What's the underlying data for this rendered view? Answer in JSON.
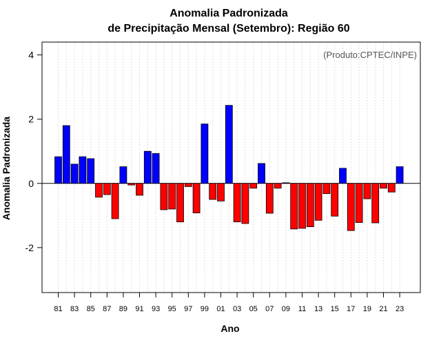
{
  "chart_data": {
    "type": "bar",
    "title": "Anomalia Padronizada",
    "subtitle": "de Precipitação Mensal (Setembro): Região 60",
    "xlabel": "Ano",
    "ylabel": "Anomalia Padronizada",
    "annotation": "(Produto:CPTEC/INPE)",
    "ylim": [
      -3.4,
      4.4
    ],
    "yticks": [
      -2,
      0,
      2,
      4
    ],
    "ytick_labels": [
      "-2",
      "0",
      "2",
      "4"
    ],
    "xtick_labels": [
      "81",
      "83",
      "85",
      "87",
      "89",
      "91",
      "93",
      "95",
      "97",
      "99",
      "01",
      "03",
      "05",
      "07",
      "09",
      "11",
      "13",
      "15",
      "17",
      "19",
      "21",
      "23"
    ],
    "grid": true,
    "categories": [
      "81",
      "82",
      "83",
      "84",
      "85",
      "86",
      "87",
      "88",
      "89",
      "90",
      "91",
      "92",
      "93",
      "94",
      "95",
      "96",
      "97",
      "98",
      "99",
      "00",
      "01",
      "02",
      "03",
      "04",
      "05",
      "06",
      "07",
      "08",
      "09",
      "10",
      "11",
      "12",
      "13",
      "14",
      "15",
      "16",
      "17",
      "18",
      "19",
      "20",
      "21",
      "22",
      "23"
    ],
    "values": [
      0.83,
      1.8,
      0.6,
      0.83,
      0.77,
      -0.43,
      -0.35,
      -1.1,
      0.52,
      -0.05,
      -0.37,
      1.0,
      0.93,
      -0.82,
      -0.8,
      -1.2,
      -0.1,
      -0.92,
      1.85,
      -0.5,
      -0.55,
      2.43,
      -1.2,
      -1.25,
      -0.15,
      0.62,
      -0.93,
      -0.15,
      0.02,
      -1.42,
      -1.4,
      -1.35,
      -1.15,
      -0.32,
      -1.02,
      0.47,
      -1.47,
      -1.22,
      -0.48,
      -1.23,
      -0.15,
      -0.27,
      0.52
    ],
    "colors": {
      "positive": "#0000ff",
      "negative": "#ff0000",
      "outline": "#000000",
      "grid": "#d3d3d3"
    }
  }
}
